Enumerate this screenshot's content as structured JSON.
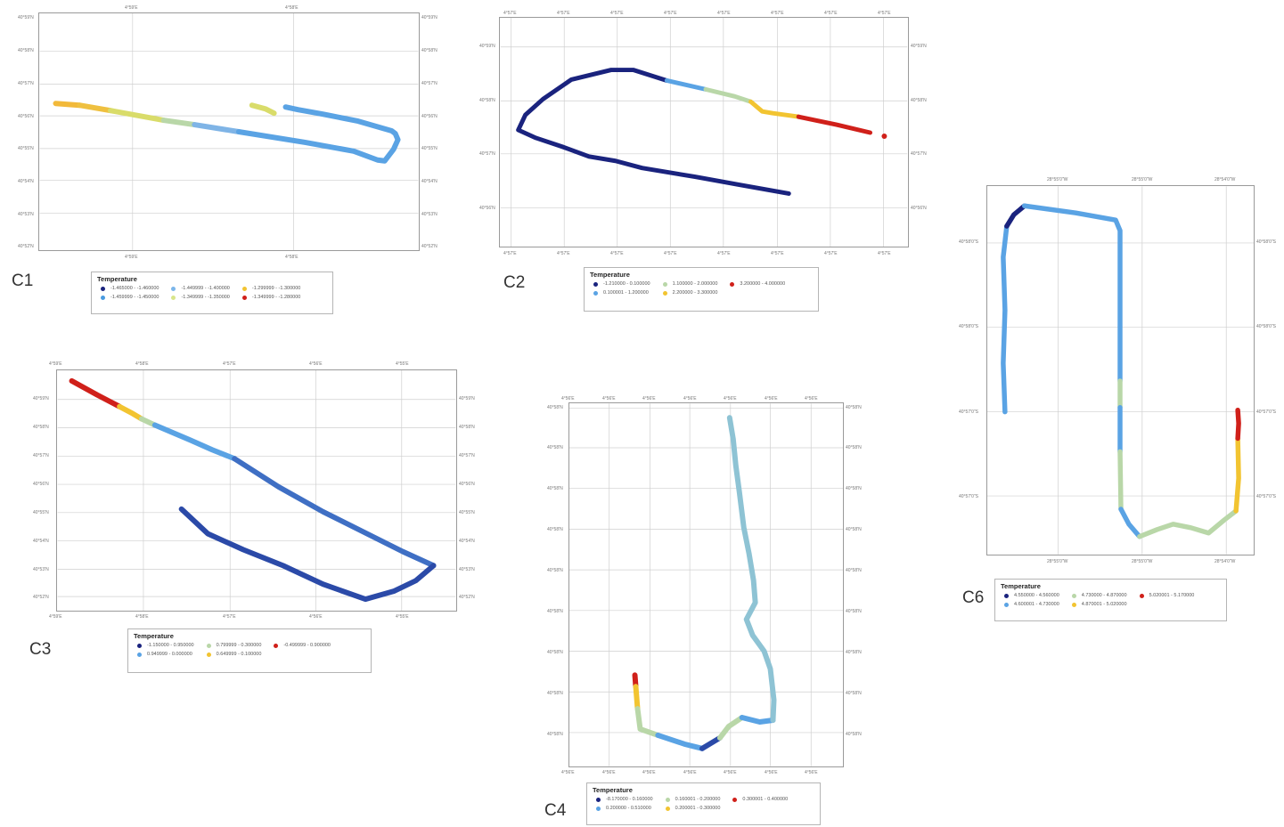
{
  "panels": [
    {
      "id": "C1",
      "legend_title": "Temperature",
      "legend_items": [
        {
          "label": "-1.465000 - -1.460000",
          "color": "#1a237e"
        },
        {
          "label": "-1.459999 - -1.450000",
          "color": "#4a9be0"
        },
        {
          "label": "-1.449999 - -1.400000",
          "color": "#7bb6ea"
        },
        {
          "label": "-1.349999 - -1.350000",
          "color": "#d8e58a"
        },
        {
          "label": "-1.299999 - -1.300000",
          "color": "#f2c431"
        },
        {
          "label": "-1.349999 - -1.280000",
          "color": "#d0201a"
        }
      ],
      "track_colors": [
        "#f2b93a",
        "#efc040",
        "#d9dc6a",
        "#b9d7a8",
        "#7fb4e6",
        "#5aa3e4",
        "#5aa3e4"
      ]
    },
    {
      "id": "C2",
      "legend_title": "Temperature",
      "legend_items": [
        {
          "label": "-1.210000 - 0.100000",
          "color": "#1a237e"
        },
        {
          "label": "0.100001 - 1.200000",
          "color": "#5aa3e4"
        },
        {
          "label": "1.100000 - 2.000000",
          "color": "#b9d7a8"
        },
        {
          "label": "2.200000 - 3.300000",
          "color": "#f2c431"
        },
        {
          "label": "3.200000 - 4.000000",
          "color": "#d0201a"
        }
      ]
    },
    {
      "id": "C3",
      "legend_title": "Temperature",
      "legend_items": [
        {
          "label": "-1.150000 - 0.950000",
          "color": "#1a237e"
        },
        {
          "label": "0.949999 - 0.000000",
          "color": "#5aa3e4"
        },
        {
          "label": "0.799999 - 0.300000",
          "color": "#b9d7a8"
        },
        {
          "label": "0.649999 - 0.100000",
          "color": "#f2c431"
        },
        {
          "label": "-0.499999 - 0.900000",
          "color": "#d0201a"
        }
      ]
    },
    {
      "id": "C4",
      "legend_title": "Temperature",
      "legend_items": [
        {
          "label": "-8.170000 - 0.160000",
          "color": "#1a237e"
        },
        {
          "label": "0.200000 - 0.510000",
          "color": "#5aa3e4"
        },
        {
          "label": "0.160001 - 0.200000",
          "color": "#b9d7a8"
        },
        {
          "label": "0.200001 - 0.300000",
          "color": "#f2c431"
        },
        {
          "label": "0.300001 - 0.400000",
          "color": "#d0201a"
        }
      ]
    },
    {
      "id": "C6",
      "legend_title": "Temperature",
      "legend_items": [
        {
          "label": "4.550000 - 4.560000",
          "color": "#1a237e"
        },
        {
          "label": "4.600001 - 4.730000",
          "color": "#5aa3e4"
        },
        {
          "label": "4.730000 - 4.870000",
          "color": "#b9d7a8"
        },
        {
          "label": "4.870001 - 5.020000",
          "color": "#f2c431"
        },
        {
          "label": "5.020001 - 5.170000",
          "color": "#d0201a"
        }
      ],
      "top_ticks": [
        "28°55'0\"W",
        "28°55'0\"W",
        "28°54'0\"W"
      ],
      "left_ticks": [
        "40°58'0\"S",
        "40°58'0\"S",
        "40°57'0\"S",
        "40°57'0\"S"
      ]
    }
  ]
}
